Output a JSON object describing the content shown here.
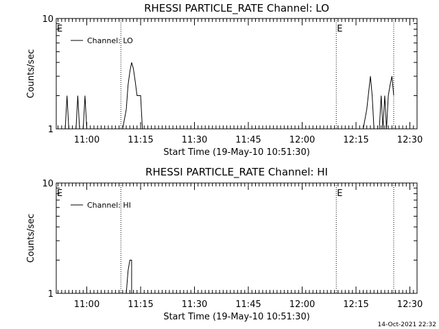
{
  "chart_data": [
    {
      "type": "line",
      "title": "RHESSI PARTICLE_RATE Channel: LO",
      "xlabel": "Start Time (19-May-10 10:51:30)",
      "ylabel": "Counts/sec",
      "y_scale": "log",
      "ylim": [
        1,
        10
      ],
      "y_ticks": [
        "1",
        "10"
      ],
      "xlim": [
        "10:51:30",
        "12:32:00"
      ],
      "x_ticks": [
        "11:00",
        "11:15",
        "11:30",
        "11:45",
        "12:00",
        "12:15",
        "12:30"
      ],
      "grid": false,
      "legend_position": "top-left",
      "series": [
        {
          "name": "Channel: LO",
          "points": [
            [
              "10:54:00",
              1
            ],
            [
              "10:54:30",
              2
            ],
            [
              "10:55:00",
              1
            ],
            [
              "10:57:00",
              1
            ],
            [
              "10:57:30",
              2
            ],
            [
              "10:58:00",
              1
            ],
            [
              "10:59:00",
              1
            ],
            [
              "10:59:30",
              2
            ],
            [
              "11:00:00",
              1
            ],
            [
              "11:10:00",
              1
            ],
            [
              "11:11:00",
              1.5
            ],
            [
              "11:11:30",
              2.5
            ],
            [
              "11:12:00",
              3.3
            ],
            [
              "11:12:30",
              4.0
            ],
            [
              "11:13:00",
              3.5
            ],
            [
              "11:13:30",
              2.7
            ],
            [
              "11:14:00",
              2.0
            ],
            [
              "11:15:00",
              2.0
            ],
            [
              "11:15:30",
              1
            ],
            [
              "12:17:00",
              1
            ],
            [
              "12:18:00",
              1.5
            ],
            [
              "12:19:00",
              3.0
            ],
            [
              "12:19:30",
              2.0
            ],
            [
              "12:20:00",
              1
            ],
            [
              "12:21:30",
              1
            ],
            [
              "12:22:00",
              2.0
            ],
            [
              "12:22:30",
              1
            ],
            [
              "12:23:00",
              2.0
            ],
            [
              "12:23:30",
              1
            ],
            [
              "12:24:00",
              2.0
            ],
            [
              "12:24:30",
              2.5
            ],
            [
              "12:25:00",
              3.0
            ],
            [
              "12:25:30",
              2.0
            ]
          ]
        }
      ],
      "markers": [
        {
          "time": "10:51:30",
          "label": "E"
        },
        {
          "time": "11:09:30",
          "label": ""
        },
        {
          "time": "12:09:30",
          "label": "E"
        },
        {
          "time": "12:25:30",
          "label": ""
        }
      ]
    },
    {
      "type": "line",
      "title": "RHESSI PARTICLE_RATE Channel: HI",
      "xlabel": "Start Time (19-May-10 10:51:30)",
      "ylabel": "Counts/sec",
      "y_scale": "log",
      "ylim": [
        1,
        10
      ],
      "y_ticks": [
        "1",
        "10"
      ],
      "xlim": [
        "10:51:30",
        "12:32:00"
      ],
      "x_ticks": [
        "11:00",
        "11:15",
        "11:30",
        "11:45",
        "12:00",
        "12:15",
        "12:30"
      ],
      "grid": false,
      "legend_position": "top-left",
      "series": [
        {
          "name": "Channel: HI",
          "points": [
            [
              "11:11:00",
              1
            ],
            [
              "11:11:30",
              1.6
            ],
            [
              "11:12:00",
              2.0
            ],
            [
              "11:12:30",
              2.0
            ],
            [
              "11:12:30",
              1
            ]
          ]
        }
      ],
      "markers": [
        {
          "time": "10:51:30",
          "label": "E"
        },
        {
          "time": "11:09:30",
          "label": ""
        },
        {
          "time": "12:09:30",
          "label": "E"
        },
        {
          "time": "12:25:30",
          "label": ""
        }
      ]
    }
  ],
  "footer": {
    "timestamp": "14-Oct-2021 22:32"
  }
}
